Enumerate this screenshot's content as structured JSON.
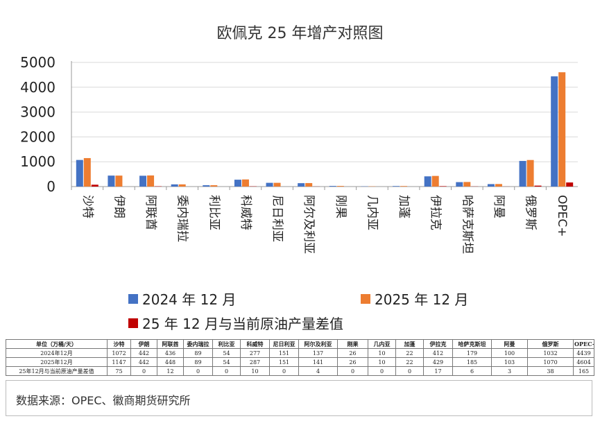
{
  "chart_data": {
    "type": "bar",
    "title": "欧佩克 25 年增产对照图",
    "categories": [
      "沙特",
      "伊朗",
      "阿联酋",
      "委内瑞拉",
      "利比亚",
      "科威特",
      "尼日利亚",
      "阿尔及利亚",
      "刚果",
      "几内亚",
      "加蓬",
      "伊拉克",
      "哈萨克斯坦",
      "阿曼",
      "俄罗斯",
      "OPEC+"
    ],
    "yticks": [
      "0",
      "1000",
      "2000",
      "3000",
      "4000",
      "5000"
    ],
    "ylim": [
      0,
      5000
    ],
    "grid": true,
    "legend_position": "bottom",
    "series": [
      {
        "name": "2024 年 12 月",
        "color": "#4472c4",
        "values": [
          1072,
          442,
          436,
          89,
          54,
          277,
          151,
          137,
          26,
          10,
          22,
          412,
          179,
          100,
          1032,
          4439
        ]
      },
      {
        "name": "2025 年 12 月",
        "color": "#ed7d31",
        "values": [
          1147,
          442,
          448,
          89,
          54,
          287,
          151,
          141,
          26,
          10,
          22,
          429,
          185,
          103,
          1070,
          4604
        ]
      },
      {
        "name": "25 年 12 月与当前原油产量差值",
        "color": "#c00000",
        "values": [
          75,
          0,
          12,
          0,
          0,
          10,
          0,
          4,
          0,
          0,
          0,
          17,
          6,
          3,
          38,
          165
        ]
      }
    ]
  },
  "table": {
    "header": [
      "单位（万桶/天）",
      "沙特",
      "伊朗",
      "阿联酋",
      "委内瑞拉",
      "利比亚",
      "科威特",
      "尼日利亚",
      "阿尔及利亚",
      "刚果",
      "几内亚",
      "加蓬",
      "伊拉克",
      "哈萨克斯坦",
      "阿曼",
      "俄罗斯",
      "OPEC+"
    ],
    "rows": [
      [
        "2024年12月",
        "1072",
        "442",
        "436",
        "89",
        "54",
        "277",
        "151",
        "137",
        "26",
        "10",
        "22",
        "412",
        "179",
        "100",
        "1032",
        "4439"
      ],
      [
        "2025年12月",
        "1147",
        "442",
        "448",
        "89",
        "54",
        "287",
        "151",
        "141",
        "26",
        "10",
        "22",
        "429",
        "185",
        "103",
        "1070",
        "4604"
      ],
      [
        "25年12月与当前原油产量差值",
        "75",
        "0",
        "12",
        "0",
        "0",
        "10",
        "0",
        "4",
        "0",
        "0",
        "0",
        "17",
        "6",
        "3",
        "38",
        "165"
      ]
    ]
  },
  "source": "数据来源：OPEC、徽商期货研究所"
}
